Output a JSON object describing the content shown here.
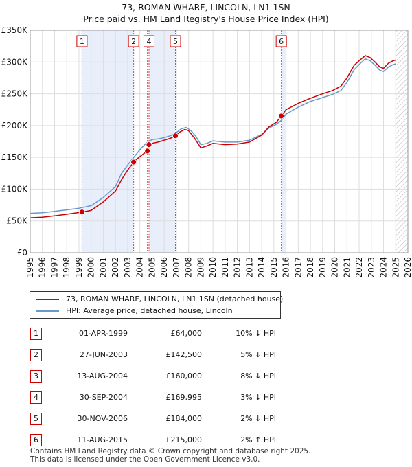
{
  "title_line1": "73, ROMAN WHARF, LINCOLN, LN1 1SN",
  "title_line2": "Price paid vs. HM Land Registry's House Price Index (HPI)",
  "chart_data": {
    "type": "line",
    "x_range": [
      1995,
      2026
    ],
    "ylim": [
      0,
      350000
    ],
    "y_ticks": [
      {
        "value": 0,
        "label": "£0"
      },
      {
        "value": 50000,
        "label": "£50K"
      },
      {
        "value": 100000,
        "label": "£100K"
      },
      {
        "value": 150000,
        "label": "£150K"
      },
      {
        "value": 200000,
        "label": "£200K"
      },
      {
        "value": 250000,
        "label": "£250K"
      },
      {
        "value": 300000,
        "label": "£300K"
      },
      {
        "value": 350000,
        "label": "£350K"
      }
    ],
    "x_ticks": [
      "1995",
      "1996",
      "1997",
      "1998",
      "1999",
      "2000",
      "2001",
      "2002",
      "2003",
      "2004",
      "2005",
      "2006",
      "2007",
      "2008",
      "2009",
      "2010",
      "2011",
      "2012",
      "2013",
      "2014",
      "2015",
      "2016",
      "2017",
      "2018",
      "2019",
      "2020",
      "2021",
      "2022",
      "2023",
      "2024",
      "2025",
      "2026"
    ],
    "grid": true,
    "forecast_start": 2025.0,
    "colors": {
      "property": "#cc0000",
      "hpi": "#6699cc",
      "band": "#e8eefa",
      "grid": "#dddddd"
    },
    "series": [
      {
        "name": "73, ROMAN WHARF, LINCOLN, LN1 1SN (detached house)",
        "color": "#cc0000",
        "points": [
          [
            1995.0,
            55000
          ],
          [
            1996.0,
            56000
          ],
          [
            1997.0,
            58000
          ],
          [
            1998.0,
            60500
          ],
          [
            1999.25,
            64000
          ],
          [
            2000.0,
            66500
          ],
          [
            2001.0,
            80000
          ],
          [
            2002.0,
            97000
          ],
          [
            2002.5,
            115000
          ],
          [
            2003.0,
            130000
          ],
          [
            2003.49,
            142500
          ],
          [
            2003.8,
            148000
          ],
          [
            2004.2,
            154000
          ],
          [
            2004.62,
            160000
          ],
          [
            2004.75,
            169995
          ],
          [
            2005.0,
            172000
          ],
          [
            2005.5,
            174000
          ],
          [
            2006.0,
            177000
          ],
          [
            2006.5,
            180000
          ],
          [
            2006.92,
            184000
          ],
          [
            2007.3,
            190000
          ],
          [
            2007.7,
            194000
          ],
          [
            2008.0,
            192000
          ],
          [
            2008.5,
            180000
          ],
          [
            2009.0,
            165000
          ],
          [
            2009.5,
            168000
          ],
          [
            2010.0,
            172000
          ],
          [
            2011.0,
            170000
          ],
          [
            2012.0,
            171000
          ],
          [
            2013.0,
            174000
          ],
          [
            2014.0,
            185000
          ],
          [
            2014.6,
            198000
          ],
          [
            2015.2,
            205000
          ],
          [
            2015.61,
            215000
          ],
          [
            2016.0,
            225000
          ],
          [
            2017.0,
            235000
          ],
          [
            2018.0,
            243000
          ],
          [
            2019.0,
            250000
          ],
          [
            2019.8,
            255000
          ],
          [
            2020.5,
            262000
          ],
          [
            2021.0,
            275000
          ],
          [
            2021.6,
            295000
          ],
          [
            2022.0,
            302000
          ],
          [
            2022.5,
            310000
          ],
          [
            2022.9,
            307000
          ],
          [
            2023.3,
            300000
          ],
          [
            2023.7,
            292000
          ],
          [
            2024.0,
            290000
          ],
          [
            2024.4,
            298000
          ],
          [
            2024.8,
            302000
          ],
          [
            2025.0,
            303000
          ]
        ]
      },
      {
        "name": "HPI: Average price, detached house, Lincoln",
        "color": "#6699cc",
        "points": [
          [
            1995.0,
            62000
          ],
          [
            1996.0,
            63000
          ],
          [
            1997.0,
            65000
          ],
          [
            1998.0,
            67500
          ],
          [
            1999.0,
            70000
          ],
          [
            2000.0,
            74000
          ],
          [
            2001.0,
            87000
          ],
          [
            2002.0,
            104000
          ],
          [
            2002.5,
            125000
          ],
          [
            2003.0,
            138000
          ],
          [
            2003.5,
            150000
          ],
          [
            2004.0,
            162000
          ],
          [
            2004.5,
            172000
          ],
          [
            2005.0,
            178000
          ],
          [
            2005.5,
            179000
          ],
          [
            2006.0,
            181000
          ],
          [
            2006.5,
            184000
          ],
          [
            2007.0,
            189000
          ],
          [
            2007.4,
            195000
          ],
          [
            2007.8,
            197000
          ],
          [
            2008.2,
            192000
          ],
          [
            2008.6,
            183000
          ],
          [
            2009.0,
            170000
          ],
          [
            2009.5,
            172000
          ],
          [
            2010.0,
            176000
          ],
          [
            2011.0,
            174000
          ],
          [
            2012.0,
            174000
          ],
          [
            2013.0,
            177000
          ],
          [
            2014.0,
            186000
          ],
          [
            2014.6,
            196000
          ],
          [
            2015.2,
            202000
          ],
          [
            2015.6,
            208000
          ],
          [
            2016.0,
            218000
          ],
          [
            2017.0,
            229000
          ],
          [
            2018.0,
            238000
          ],
          [
            2019.0,
            244000
          ],
          [
            2019.8,
            249000
          ],
          [
            2020.5,
            255000
          ],
          [
            2021.0,
            268000
          ],
          [
            2021.6,
            288000
          ],
          [
            2022.0,
            296000
          ],
          [
            2022.5,
            305000
          ],
          [
            2022.9,
            302000
          ],
          [
            2023.3,
            295000
          ],
          [
            2023.7,
            287000
          ],
          [
            2024.0,
            285000
          ],
          [
            2024.4,
            292000
          ],
          [
            2024.8,
            296000
          ],
          [
            2025.0,
            297000
          ]
        ]
      }
    ],
    "sales_markers": [
      {
        "label": "1",
        "x": 1999.25,
        "price": 64000
      },
      {
        "label": "2",
        "x": 2003.49,
        "price": 142500
      },
      {
        "label": "3",
        "x": 2004.62,
        "price": 160000
      },
      {
        "label": "4",
        "x": 2004.75,
        "price": 169995
      },
      {
        "label": "5",
        "x": 2006.92,
        "price": 184000
      },
      {
        "label": "6",
        "x": 2015.61,
        "price": 215000
      }
    ],
    "top_labels": [
      "1",
      "2",
      "4",
      "5",
      "6"
    ],
    "bands": [
      [
        1999.25,
        2003.49
      ],
      [
        2004.75,
        2006.92
      ],
      [
        2015.61,
        2016.0
      ]
    ]
  },
  "legend": {
    "property_label": "73, ROMAN WHARF, LINCOLN, LN1 1SN (detached house)",
    "hpi_label": "HPI: Average price, detached house, Lincoln"
  },
  "sales": [
    {
      "num": "1",
      "date": "01-APR-1999",
      "price": "£64,000",
      "hpi": "10% ↓ HPI"
    },
    {
      "num": "2",
      "date": "27-JUN-2003",
      "price": "£142,500",
      "hpi": "5% ↓ HPI"
    },
    {
      "num": "3",
      "date": "13-AUG-2004",
      "price": "£160,000",
      "hpi": "8% ↓ HPI"
    },
    {
      "num": "4",
      "date": "30-SEP-2004",
      "price": "£169,995",
      "hpi": "3% ↓ HPI"
    },
    {
      "num": "5",
      "date": "30-NOV-2006",
      "price": "£184,000",
      "hpi": "2% ↓ HPI"
    },
    {
      "num": "6",
      "date": "11-AUG-2015",
      "price": "£215,000",
      "hpi": "2% ↑ HPI"
    }
  ],
  "footer_line1": "Contains HM Land Registry data © Crown copyright and database right 2025.",
  "footer_line2": "This data is licensed under the Open Government Licence v3.0."
}
